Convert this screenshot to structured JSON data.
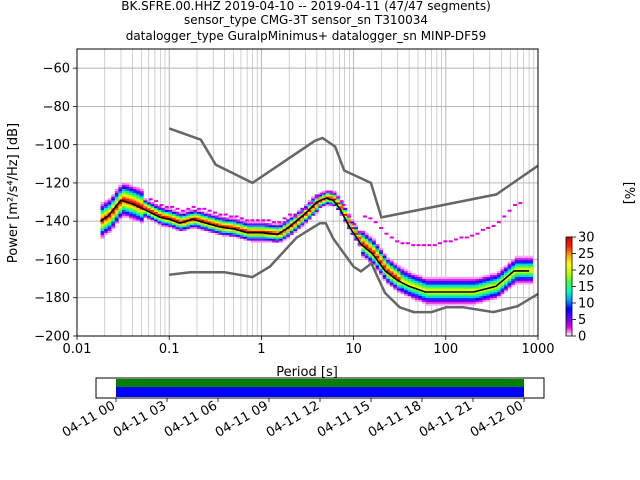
{
  "title_lines": [
    "BK.SFRE.00.HHZ   2019-04-10 -- 2019-04-11  (47/47 segments)",
    "sensor_type CMG-3T sensor_sn T310034",
    "datalogger_type GuralpMinimus+ datalogger_sn MINP-DF59"
  ],
  "chart_data": [
    {
      "type": "heatmap",
      "title": "BK.SFRE.00.HHZ   2019-04-10 -- 2019-04-11  (47/47 segments)",
      "xlabel": "Period [s]",
      "ylabel": "Power [m²/s⁴/Hz] [dB]",
      "xscale": "log",
      "xlim": [
        0.01,
        1000
      ],
      "ylim": [
        -200,
        -50
      ],
      "grid": true,
      "x_ticks": [
        {
          "value": 0.01,
          "label": "0.01"
        },
        {
          "value": 0.1,
          "label": "0.1"
        },
        {
          "value": 1,
          "label": "1"
        },
        {
          "value": 10,
          "label": "10"
        },
        {
          "value": 100,
          "label": "100"
        },
        {
          "value": 1000,
          "label": "1000"
        }
      ],
      "y_ticks": [
        -60,
        -80,
        -100,
        -120,
        -140,
        -160,
        -180,
        -200
      ],
      "colorbar": {
        "label": "[%]",
        "ticks": [
          0,
          5,
          10,
          15,
          20,
          25,
          30
        ],
        "range": [
          0,
          30
        ],
        "colormap": [
          "#ffffff",
          "#e000e0",
          "#6000ff",
          "#0000ff",
          "#00a0ff",
          "#00ffc0",
          "#40ff40",
          "#c0ff00",
          "#ffff00",
          "#ffa000",
          "#ff2000",
          "#d00000"
        ]
      },
      "series": [
        {
          "name": "",
          "style": "mode",
          "color": "#000000",
          "x": [
            0.018,
            0.022,
            0.03,
            0.04,
            0.06,
            0.08,
            0.1,
            0.13,
            0.18,
            0.25,
            0.35,
            0.5,
            0.7,
            1,
            1.5,
            2,
            3,
            4,
            5,
            6,
            7,
            9,
            12,
            16,
            22,
            30,
            40,
            60,
            100,
            200,
            350,
            550,
            800
          ],
          "y": [
            -140,
            -137,
            -129,
            -131,
            -135,
            -138,
            -139,
            -141,
            -139,
            -141,
            -143,
            -144,
            -146,
            -146,
            -147,
            -143,
            -136,
            -130,
            -128,
            -129,
            -133,
            -143,
            -152,
            -157,
            -166,
            -171,
            -174,
            -177,
            -177,
            -177,
            -174,
            -166,
            -166
          ]
        },
        {
          "name": "",
          "style": "noise-model-high",
          "color": "#666666",
          "x": [
            0.1,
            0.22,
            0.32,
            0.8,
            3.8,
            4.6,
            6.3,
            7.9,
            15.4,
            20,
            354,
            1000
          ],
          "y": [
            -91.5,
            -97.4,
            -110.5,
            -120,
            -98,
            -96.5,
            -101,
            -113.5,
            -120,
            -138,
            -126,
            -111
          ]
        },
        {
          "name": "",
          "style": "noise-model-low",
          "color": "#666666",
          "x": [
            0.1,
            0.17,
            0.4,
            0.8,
            1.24,
            2.4,
            4.3,
            5,
            6,
            10,
            12,
            15.6,
            21.9,
            31.6,
            45,
            70,
            101,
            154,
            328,
            600,
            1000
          ],
          "y": [
            -168,
            -166.7,
            -166.7,
            -169.2,
            -163.7,
            -148.6,
            -141.1,
            -141.1,
            -149,
            -163.8,
            -166.2,
            -162.1,
            -177.5,
            -185,
            -187.5,
            -187.5,
            -185,
            -185,
            -187.5,
            -184.4,
            -178
          ]
        }
      ]
    },
    {
      "type": "timeline",
      "title": "",
      "x_ticks": [
        "04-11 00",
        "04-11 03",
        "04-11 06",
        "04-11 09",
        "04-11 12",
        "04-11 15",
        "04-11 18",
        "04-11 21",
        "04-12 00"
      ],
      "coverage": [
        {
          "start": "04-11 00",
          "end": "04-12 00",
          "color": "#008000",
          "row": "upper"
        },
        {
          "start": "04-11 00",
          "end": "04-12 00",
          "color": "#0000ff",
          "row": "lower"
        }
      ]
    }
  ]
}
